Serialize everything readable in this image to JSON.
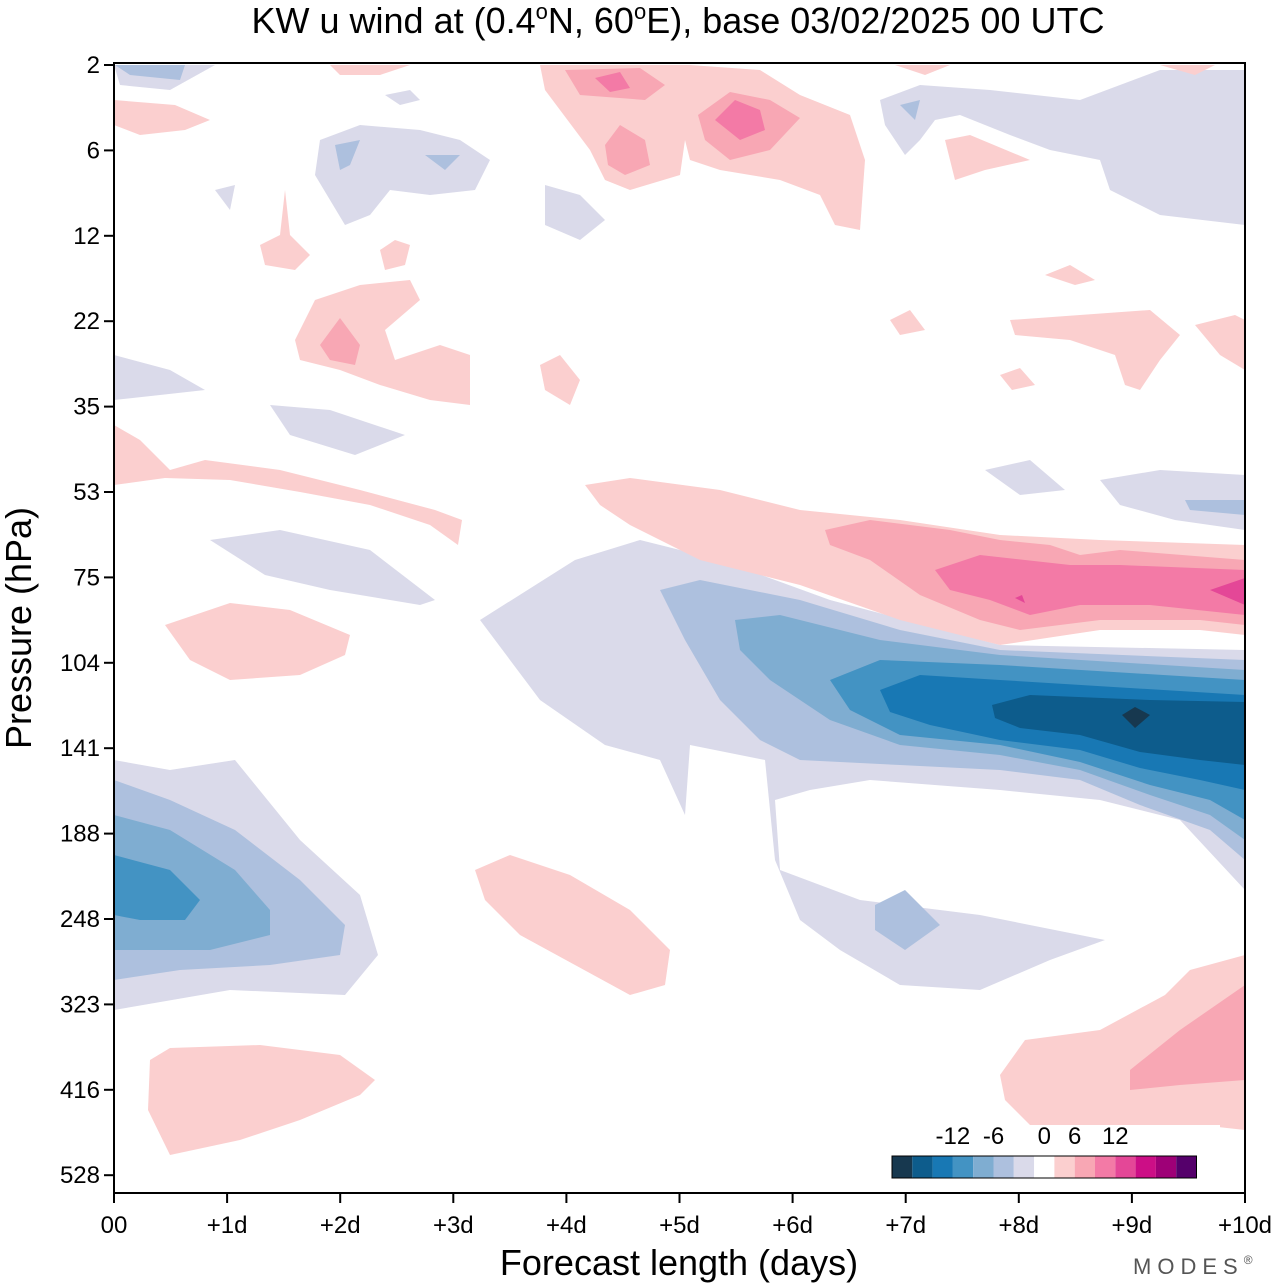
{
  "chart_data": {
    "type": "heatmap",
    "title_prefix": "KW u wind at (0.4",
    "title_deg": "o",
    "title_mid": "N, 60",
    "title_suffix": "E),  base 03/02/2025  00 UTC",
    "xlabel": "Forecast length (days)",
    "ylabel": "Pressure (hPa)",
    "x_ticks": [
      "00",
      "+1d",
      "+2d",
      "+3d",
      "+4d",
      "+5d",
      "+6d",
      "+7d",
      "+8d",
      "+9d",
      "+10d"
    ],
    "x_range": [
      0,
      10
    ],
    "y_ticks": [
      "2",
      "6",
      "12",
      "22",
      "35",
      "53",
      "75",
      "104",
      "141",
      "188",
      "248",
      "323",
      "416",
      "528"
    ],
    "y_scale": "log-pressure, top to bottom",
    "colorbar": {
      "tick_labels": [
        "-12",
        "-6",
        "0",
        "6",
        "12"
      ],
      "levels": [
        -18,
        -15,
        -12,
        -9,
        -6,
        -3,
        3,
        6,
        9,
        12,
        15,
        18
      ],
      "colors": [
        "#17384f",
        "#0d5c8c",
        "#1878b4",
        "#4393c3",
        "#7fadd1",
        "#adc0de",
        "#dadaea",
        "#ffffff",
        "#fbcfcf",
        "#f8a7b4",
        "#f37aa6",
        "#e44797",
        "#cc0e86",
        "#9e0077",
        "#55006b"
      ]
    },
    "regions": [
      {
        "name": "upper-troposphere easterly jet",
        "level": -12,
        "x_days": [
          7,
          10
        ],
        "pressure_hPa": [
          104,
          141
        ]
      },
      {
        "name": "lower-stratosphere westerly band",
        "level": 9,
        "x_days": [
          7.5,
          10
        ],
        "pressure_hPa": [
          75,
          90
        ]
      },
      {
        "name": "initial easterly anomaly",
        "level": -9,
        "x_days": [
          0,
          2
        ],
        "pressure_hPa": [
          188,
          300
        ]
      },
      {
        "name": "upper westerly patches",
        "level": 6,
        "x_days": [
          4,
          6
        ],
        "pressure_hPa": [
          2,
          8
        ]
      }
    ],
    "grid": false,
    "legend": "bottom-right"
  },
  "brand": "MODES",
  "brand_mark": "®"
}
